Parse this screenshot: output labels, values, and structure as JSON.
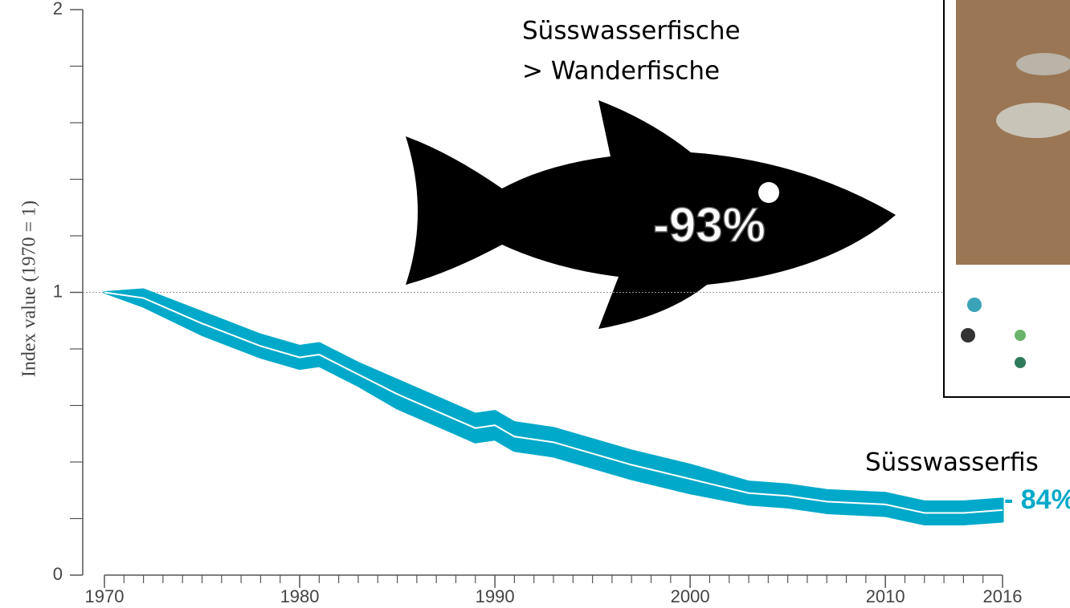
{
  "chart_data": {
    "type": "line",
    "y_label": "Index value (1970 = 1)",
    "x": [
      1970,
      1972,
      1975,
      1978,
      1980,
      1981,
      1983,
      1985,
      1987,
      1989,
      1990,
      1991,
      1993,
      1995,
      1997,
      2000,
      2003,
      2005,
      2007,
      2010,
      2012,
      2014,
      2016
    ],
    "series": [
      {
        "color": "#00a9c9",
        "values": [
          1,
          0.98,
          0.89,
          0.81,
          0.77,
          0.78,
          0.71,
          0.64,
          0.58,
          0.52,
          0.53,
          0.49,
          0.47,
          0.43,
          0.39,
          0.34,
          0.29,
          0.28,
          0.26,
          0.25,
          0.22,
          0.22,
          0.23
        ],
        "lower": [
          1,
          0.95,
          0.85,
          0.77,
          0.73,
          0.74,
          0.67,
          0.59,
          0.53,
          0.47,
          0.48,
          0.44,
          0.42,
          0.38,
          0.34,
          0.29,
          0.25,
          0.24,
          0.22,
          0.21,
          0.18,
          0.18,
          0.19
        ],
        "upper": [
          1,
          1.01,
          0.93,
          0.85,
          0.81,
          0.82,
          0.75,
          0.69,
          0.63,
          0.57,
          0.58,
          0.54,
          0.52,
          0.48,
          0.44,
          0.39,
          0.33,
          0.32,
          0.3,
          0.29,
          0.26,
          0.26,
          0.27
        ]
      }
    ],
    "xlim": [
      1970,
      2016
    ],
    "xticks": [
      1970,
      1980,
      1990,
      2000,
      2010,
      2016
    ],
    "x_minor_ticks": [
      1971,
      1972,
      1973,
      1974,
      1975,
      1976,
      1977,
      1978,
      1979,
      1981,
      1982,
      1983,
      1984,
      1985,
      1986,
      1987,
      1988,
      1989,
      1991,
      1992,
      1993,
      1994,
      1995,
      1996,
      1997,
      1998,
      1999,
      2001,
      2002,
      2003,
      2004,
      2005,
      2006,
      2007,
      2008,
      2009,
      2011,
      2012,
      2013,
      2014,
      2015
    ],
    "ylim": [
      0,
      2
    ],
    "yticks": [
      0,
      1,
      2
    ],
    "y_minor_ticks": [
      0.2,
      0.4,
      0.6,
      0.8,
      1.2,
      1.4,
      1.6,
      1.8
    ],
    "reference_line": 1,
    "annotations": {
      "group": "Süsswasserfische",
      "subgroup": "> Wanderfische",
      "fish_change": "-93%",
      "right_label": "Süsswasserfis",
      "end_change": "- 84%"
    }
  }
}
